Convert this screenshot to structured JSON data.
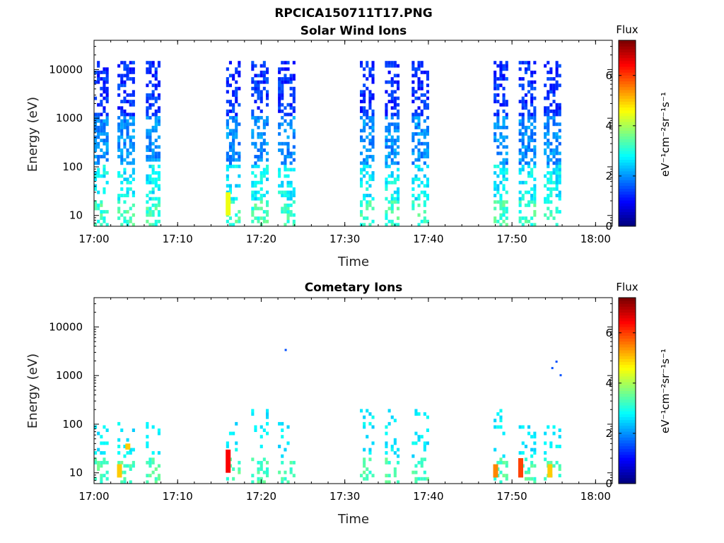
{
  "figure": {
    "title": "RPCICA150711T17.PNG"
  },
  "colormap": "jet",
  "chart_data": [
    {
      "type": "heatmap",
      "title": "Solar Wind Ions",
      "xlabel": "Time",
      "ylabel": "Energy (eV)",
      "y_scale": "log",
      "ylim": [
        6,
        40000
      ],
      "xlim": [
        "17:00",
        "18:02"
      ],
      "x_ticks": [
        "17:00",
        "17:10",
        "17:20",
        "17:30",
        "17:40",
        "17:50",
        "18:00"
      ],
      "y_ticks": [
        "10",
        "100",
        "1000",
        "10000"
      ],
      "colorbar": {
        "title": "Flux",
        "label": "eV⁻¹cm⁻²sr⁻¹s⁻¹",
        "range": [
          0,
          7.4
        ],
        "ticks": [
          "0",
          "2",
          "4",
          "6"
        ]
      },
      "bursts": [
        {
          "start": "17:00",
          "end": "17:01.5",
          "emax": 15000
        },
        {
          "start": "17:02.8",
          "end": "17:04.6",
          "emax": 15000
        },
        {
          "start": "17:06.2",
          "end": "17:07.8",
          "emax": 15000
        },
        {
          "start": "17:15.8",
          "end": "17:17.5",
          "emax": 15000
        },
        {
          "start": "17:18.8",
          "end": "17:20.6",
          "emax": 15000
        },
        {
          "start": "17:22",
          "end": "17:24",
          "emax": 15000
        },
        {
          "start": "17:31.8",
          "end": "17:33.3",
          "emax": 15000
        },
        {
          "start": "17:34.8",
          "end": "17:36.5",
          "emax": 15000
        },
        {
          "start": "17:38",
          "end": "17:39.8",
          "emax": 15000
        },
        {
          "start": "17:47.8",
          "end": "17:49.5",
          "emax": 15000
        },
        {
          "start": "17:50.8",
          "end": "17:52.6",
          "emax": 15000
        },
        {
          "start": "17:53.8",
          "end": "17:55.6",
          "emax": 15000
        }
      ],
      "peak": {
        "time": "17:16",
        "energy": "10-30 eV",
        "flux": 4.5
      }
    },
    {
      "type": "heatmap",
      "title": "Cometary Ions",
      "xlabel": "Time",
      "ylabel": "Energy (eV)",
      "y_scale": "log",
      "ylim": [
        6,
        40000
      ],
      "xlim": [
        "17:00",
        "18:02"
      ],
      "x_ticks": [
        "17:00",
        "17:10",
        "17:20",
        "17:30",
        "17:40",
        "17:50",
        "18:00"
      ],
      "y_ticks": [
        "10",
        "100",
        "1000",
        "10000"
      ],
      "colorbar": {
        "title": "Flux",
        "label": "eV⁻¹cm⁻²sr⁻¹s⁻¹",
        "range": [
          0,
          7.4
        ],
        "ticks": [
          "0",
          "2",
          "4",
          "6"
        ]
      },
      "bursts": [
        {
          "start": "17:00",
          "end": "17:01.5",
          "emax": 100
        },
        {
          "start": "17:02.8",
          "end": "17:04.6",
          "emax": 100
        },
        {
          "start": "17:06.2",
          "end": "17:07.8",
          "emax": 100
        },
        {
          "start": "17:15.8",
          "end": "17:17.5",
          "emax": 100
        },
        {
          "start": "17:18.8",
          "end": "17:20.6",
          "emax": 200
        },
        {
          "start": "17:22",
          "end": "17:24",
          "emax": 100
        },
        {
          "start": "17:31.8",
          "end": "17:33.3",
          "emax": 200
        },
        {
          "start": "17:34.8",
          "end": "17:36.5",
          "emax": 200
        },
        {
          "start": "17:38",
          "end": "17:39.8",
          "emax": 200
        },
        {
          "start": "17:47.8",
          "end": "17:49.5",
          "emax": 200
        },
        {
          "start": "17:50.8",
          "end": "17:52.6",
          "emax": 100
        },
        {
          "start": "17:53.8",
          "end": "17:55.6",
          "emax": 100
        }
      ],
      "hot_spots": [
        {
          "time": "17:03",
          "energy": "8-15 eV",
          "flux": 5.0
        },
        {
          "time": "17:04",
          "energy": "30-40 eV",
          "flux": 5.0
        },
        {
          "time": "17:16",
          "energy": "10-30 eV",
          "flux": 6.5
        },
        {
          "time": "17:48",
          "energy": "8-15 eV",
          "flux": 5.5
        },
        {
          "time": "17:51",
          "energy": "8-20 eV",
          "flux": 6.0
        },
        {
          "time": "17:54.5",
          "energy": "8-15 eV",
          "flux": 5.0
        }
      ],
      "outliers": [
        {
          "time": "17:22.8",
          "energy": 3300,
          "flux": 1.5
        },
        {
          "time": "17:54.7",
          "energy": 1400,
          "flux": 1.5
        },
        {
          "time": "17:55.2",
          "energy": 1900,
          "flux": 1.5
        },
        {
          "time": "17:55.7",
          "energy": 1000,
          "flux": 1.5
        }
      ]
    }
  ]
}
